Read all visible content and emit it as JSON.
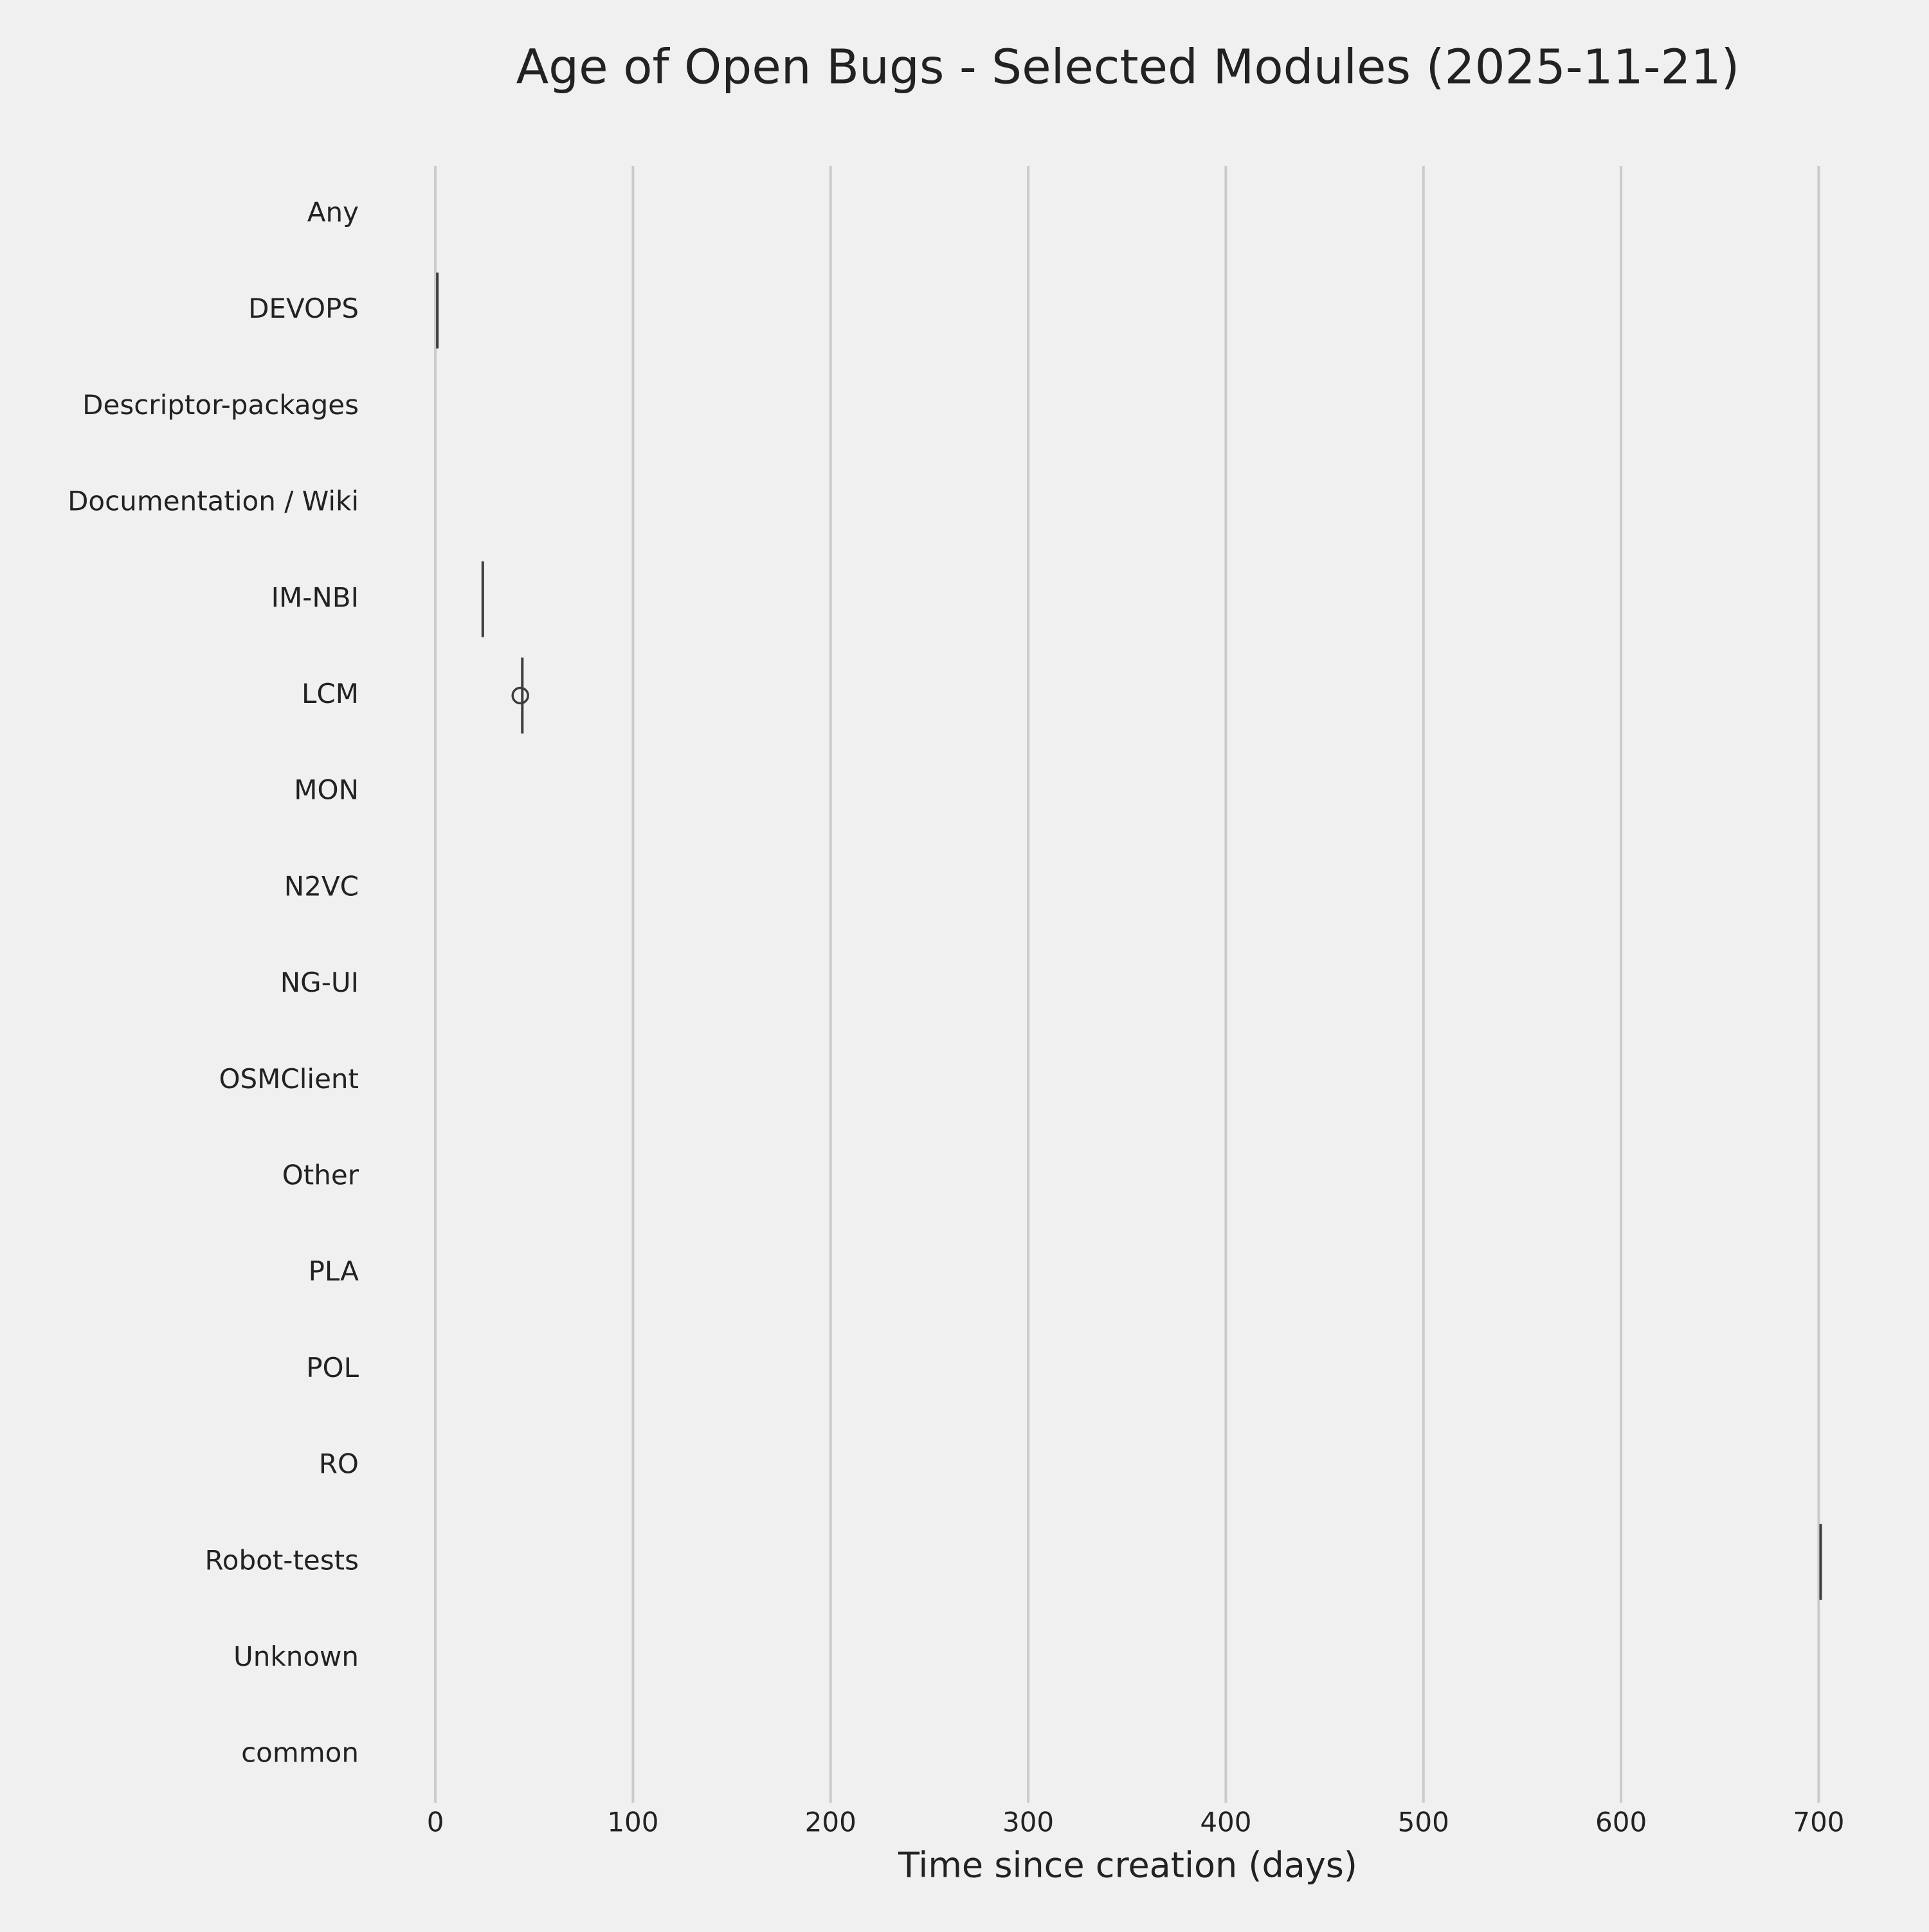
{
  "chart_data": {
    "type": "box",
    "title": "Age of Open Bugs - Selected Modules (2025-11-21)",
    "xlabel": "Time since creation (days)",
    "categories": [
      "Any",
      "DEVOPS",
      "Descriptor-packages",
      "Documentation / Wiki",
      "IM-NBI",
      "LCM",
      "MON",
      "N2VC",
      "NG-UI",
      "OSMClient",
      "Other",
      "PLA",
      "POL",
      "RO",
      "Robot-tests",
      "Unknown",
      "common"
    ],
    "values": [
      null,
      1,
      null,
      null,
      24,
      44,
      null,
      null,
      null,
      null,
      null,
      null,
      null,
      null,
      701,
      null,
      null
    ],
    "outliers": [
      [],
      [],
      [],
      [],
      [],
      [
        43
      ],
      [],
      [],
      [],
      [],
      [],
      [],
      [],
      [],
      [],
      [],
      []
    ],
    "color": "#3d3d3d",
    "xlim": [
      -35,
      735
    ],
    "xticks": [
      0,
      100,
      200,
      300,
      400,
      500,
      600,
      700
    ],
    "grid": true
  }
}
